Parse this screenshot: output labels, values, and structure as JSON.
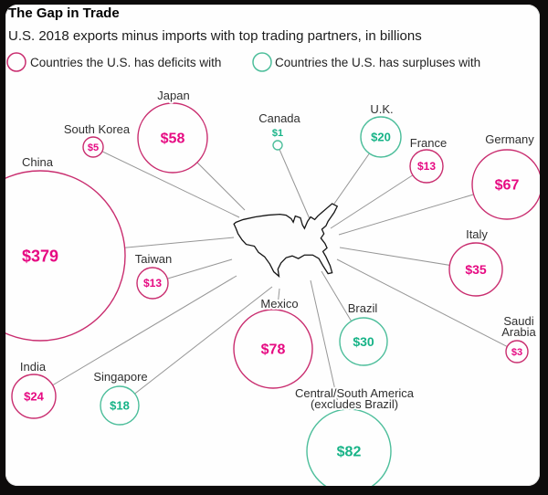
{
  "header": {
    "title": "The Gap in Trade",
    "subtitle": "U.S. 2018 exports minus imports with top trading partners, in billions"
  },
  "legend": {
    "deficit_label": "Countries the U.S. has deficits with",
    "surplus_label": "Countries the U.S. has surpluses with"
  },
  "colors": {
    "deficit_stroke": "#c92d6f",
    "deficit_text": "#e60a82",
    "surplus_stroke": "#4dbe9b",
    "surplus_text": "#17b387",
    "line": "#969696",
    "map_stroke": "#141414",
    "label": "#2f2f2f",
    "frame": "#0d0b0b",
    "background": "#fefefe"
  },
  "chart_data": {
    "type": "bubble",
    "title": "The Gap in Trade",
    "subtitle": "U.S. 2018 exports minus imports with top trading partners, in billions",
    "unit": "USD billions",
    "legend": [
      {
        "label": "Countries the U.S. has deficits with",
        "balance": "deficit"
      },
      {
        "label": "Countries the U.S. has surpluses with",
        "balance": "surplus"
      }
    ],
    "center_shape": "united-states-outline",
    "series": [
      {
        "name": "China",
        "label": "$379",
        "value": 379,
        "balance": "deficit"
      },
      {
        "name": "South Korea",
        "label": "$5",
        "value": 5,
        "balance": "deficit"
      },
      {
        "name": "Japan",
        "label": "$58",
        "value": 58,
        "balance": "deficit"
      },
      {
        "name": "Canada",
        "label": "$1",
        "value": 1,
        "balance": "surplus"
      },
      {
        "name": "U.K.",
        "label": "$20",
        "value": 20,
        "balance": "surplus"
      },
      {
        "name": "France",
        "label": "$13",
        "value": 13,
        "balance": "deficit"
      },
      {
        "name": "Germany",
        "label": "$67",
        "value": 67,
        "balance": "deficit"
      },
      {
        "name": "Italy",
        "label": "$35",
        "value": 35,
        "balance": "deficit"
      },
      {
        "name": "Saudi Arabia",
        "label": "$3",
        "value": 3,
        "balance": "deficit"
      },
      {
        "name": "Taiwan",
        "label": "$13",
        "value": 13,
        "balance": "deficit"
      },
      {
        "name": "Mexico",
        "label": "$78",
        "value": 78,
        "balance": "deficit"
      },
      {
        "name": "Brazil",
        "label": "$30",
        "value": 30,
        "balance": "surplus"
      },
      {
        "name": "India",
        "label": "$24",
        "value": 24,
        "balance": "deficit"
      },
      {
        "name": "Singapore",
        "label": "$18",
        "value": 18,
        "balance": "surplus"
      },
      {
        "name": "Central/South America (excludes Brazil)",
        "label": "$82",
        "value": 82,
        "balance": "surplus"
      }
    ]
  }
}
